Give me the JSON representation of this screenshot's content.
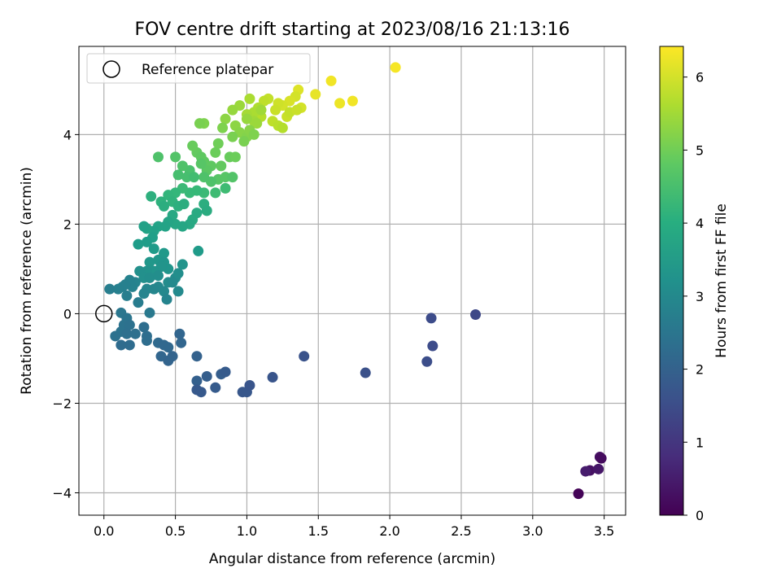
{
  "chart_data": {
    "type": "scatter",
    "title": "FOV centre drift starting at 2023/08/16 21:13:16",
    "xlabel": "Angular distance from reference (arcmin)",
    "ylabel": "Rotation from reference (arcmin)",
    "xlim": [
      -0.175,
      3.65
    ],
    "ylim": [
      -4.5,
      5.97
    ],
    "x_ticks": [
      "0.0",
      "0.5",
      "1.0",
      "1.5",
      "2.0",
      "2.5",
      "3.0",
      "3.5"
    ],
    "y_ticks": [
      "−4",
      "−2",
      "0",
      "2",
      "4"
    ],
    "x_tick_values": [
      0,
      0.5,
      1.0,
      1.5,
      2.0,
      2.5,
      3.0,
      3.5
    ],
    "y_tick_values": [
      -4,
      -2,
      0,
      2,
      4
    ],
    "grid": true,
    "legend": {
      "placement": "top-left",
      "label": "Reference platepar"
    },
    "reference_point": [
      0.0,
      0.0
    ],
    "colormap": "viridis",
    "colorbar": {
      "label": "Hours from first FF file",
      "range": [
        0,
        6.42
      ],
      "ticks": [
        "0",
        "1",
        "2",
        "3",
        "4",
        "5",
        "6"
      ],
      "tick_values": [
        0,
        1,
        2,
        3,
        4,
        5,
        6
      ]
    },
    "points": [
      [
        3.32,
        -4.02,
        0.05
      ],
      [
        3.4,
        -3.5,
        0.3
      ],
      [
        3.37,
        -3.52,
        0.5
      ],
      [
        3.46,
        -3.47,
        0.4
      ],
      [
        3.47,
        -3.2,
        0.3
      ],
      [
        3.48,
        -3.23,
        0.2
      ],
      [
        2.04,
        5.5,
        6.35
      ],
      [
        1.59,
        5.2,
        6.3
      ],
      [
        1.48,
        4.9,
        6.2
      ],
      [
        1.65,
        4.7,
        6.25
      ],
      [
        1.74,
        4.75,
        6.3
      ],
      [
        1.36,
        5.0,
        6.1
      ],
      [
        1.34,
        4.85,
        6.0
      ],
      [
        1.38,
        4.6,
        6.0
      ],
      [
        1.3,
        4.75,
        6.05
      ],
      [
        1.25,
        4.65,
        6.0
      ],
      [
        1.22,
        4.7,
        5.95
      ],
      [
        1.2,
        4.55,
        5.9
      ],
      [
        1.28,
        4.4,
        5.9
      ],
      [
        1.3,
        4.5,
        5.85
      ],
      [
        1.35,
        4.55,
        5.9
      ],
      [
        1.15,
        4.8,
        5.85
      ],
      [
        1.12,
        4.75,
        5.8
      ],
      [
        1.18,
        4.3,
        5.8
      ],
      [
        1.22,
        4.2,
        5.75
      ],
      [
        1.25,
        4.15,
        5.7
      ],
      [
        1.1,
        4.4,
        5.7
      ],
      [
        1.08,
        4.6,
        5.65
      ],
      [
        1.05,
        4.5,
        5.6
      ],
      [
        1.02,
        4.8,
        5.6
      ],
      [
        1.0,
        4.45,
        5.55
      ],
      [
        1.05,
        4.3,
        5.5
      ],
      [
        1.07,
        4.25,
        5.45
      ],
      [
        1.1,
        4.55,
        5.5
      ],
      [
        1.0,
        4.35,
        5.4
      ],
      [
        0.95,
        4.65,
        5.45
      ],
      [
        0.9,
        4.55,
        5.4
      ],
      [
        0.85,
        4.35,
        5.3
      ],
      [
        0.92,
        4.2,
        5.3
      ],
      [
        0.95,
        4.05,
        5.25
      ],
      [
        1.0,
        3.95,
        5.2
      ],
      [
        1.02,
        4.1,
        5.25
      ],
      [
        1.05,
        4.0,
        5.15
      ],
      [
        0.98,
        3.85,
        5.1
      ],
      [
        0.9,
        3.95,
        5.1
      ],
      [
        0.83,
        4.15,
        5.15
      ],
      [
        0.7,
        4.25,
        5.15
      ],
      [
        0.67,
        4.25,
        5.1
      ],
      [
        0.8,
        3.8,
        5.0
      ],
      [
        0.78,
        3.6,
        4.95
      ],
      [
        0.88,
        3.5,
        4.9
      ],
      [
        0.92,
        3.5,
        4.95
      ],
      [
        0.82,
        3.3,
        4.85
      ],
      [
        0.75,
        3.3,
        4.8
      ],
      [
        0.7,
        3.4,
        4.8
      ],
      [
        0.65,
        3.6,
        4.85
      ],
      [
        0.62,
        3.75,
        4.9
      ],
      [
        0.68,
        3.5,
        4.8
      ],
      [
        0.72,
        3.2,
        4.75
      ],
      [
        0.8,
        3.0,
        4.7
      ],
      [
        0.85,
        3.05,
        4.7
      ],
      [
        0.9,
        3.05,
        4.65
      ],
      [
        0.7,
        3.05,
        4.6
      ],
      [
        0.75,
        2.95,
        4.6
      ],
      [
        0.68,
        3.35,
        4.7
      ],
      [
        0.6,
        3.2,
        4.55
      ],
      [
        0.55,
        3.3,
        4.6
      ],
      [
        0.5,
        3.5,
        4.65
      ],
      [
        0.52,
        3.1,
        4.5
      ],
      [
        0.58,
        3.05,
        4.5
      ],
      [
        0.63,
        3.05,
        4.45
      ],
      [
        0.78,
        2.7,
        4.4
      ],
      [
        0.85,
        2.8,
        4.4
      ],
      [
        0.7,
        2.7,
        4.35
      ],
      [
        0.65,
        2.75,
        4.3
      ],
      [
        0.6,
        2.7,
        4.3
      ],
      [
        0.55,
        2.8,
        4.35
      ],
      [
        0.5,
        2.7,
        4.25
      ],
      [
        0.45,
        2.65,
        4.2
      ],
      [
        0.48,
        2.5,
        4.15
      ],
      [
        0.4,
        2.5,
        4.1
      ],
      [
        0.38,
        3.5,
        4.6
      ],
      [
        0.33,
        2.62,
        4.05
      ],
      [
        0.42,
        2.4,
        4.0
      ],
      [
        0.52,
        2.4,
        4.05
      ],
      [
        0.56,
        2.45,
        4.0
      ],
      [
        0.7,
        2.45,
        4.0
      ],
      [
        0.72,
        2.3,
        3.95
      ],
      [
        0.65,
        2.25,
        3.9
      ],
      [
        0.62,
        2.1,
        3.9
      ],
      [
        0.6,
        2.0,
        3.85
      ],
      [
        0.55,
        1.95,
        3.8
      ],
      [
        0.5,
        2.0,
        3.8
      ],
      [
        0.48,
        2.2,
        3.85
      ],
      [
        0.45,
        2.05,
        3.75
      ],
      [
        0.43,
        1.95,
        3.7
      ],
      [
        0.38,
        1.95,
        3.7
      ],
      [
        0.35,
        1.85,
        3.65
      ],
      [
        0.3,
        1.9,
        3.7
      ],
      [
        0.28,
        1.95,
        3.65
      ],
      [
        0.34,
        1.7,
        3.6
      ],
      [
        0.3,
        1.6,
        3.55
      ],
      [
        0.24,
        1.55,
        3.55
      ],
      [
        0.35,
        1.45,
        3.5
      ],
      [
        0.42,
        1.35,
        3.45
      ],
      [
        0.38,
        1.2,
        3.4
      ],
      [
        0.32,
        1.15,
        3.4
      ],
      [
        0.42,
        1.15,
        3.35
      ],
      [
        0.45,
        1.0,
        3.35
      ],
      [
        0.4,
        1.05,
        3.3
      ],
      [
        0.35,
        0.95,
        3.3
      ],
      [
        0.3,
        0.95,
        3.25
      ],
      [
        0.25,
        0.95,
        3.2
      ],
      [
        0.28,
        0.8,
        3.2
      ],
      [
        0.32,
        0.8,
        3.15
      ],
      [
        0.38,
        0.85,
        3.15
      ],
      [
        0.45,
        0.7,
        3.1
      ],
      [
        0.5,
        0.8,
        3.1
      ],
      [
        0.52,
        0.9,
        3.15
      ],
      [
        0.55,
        1.1,
        3.3
      ],
      [
        0.52,
        0.5,
        3.05
      ],
      [
        0.48,
        0.7,
        3.05
      ],
      [
        0.42,
        0.5,
        3.0
      ],
      [
        0.38,
        0.6,
        3.0
      ],
      [
        0.35,
        0.55,
        2.95
      ],
      [
        0.3,
        0.55,
        2.95
      ],
      [
        0.28,
        0.45,
        2.9
      ],
      [
        0.22,
        0.7,
        2.9
      ],
      [
        0.2,
        0.6,
        2.85
      ],
      [
        0.18,
        0.75,
        2.85
      ],
      [
        0.15,
        0.65,
        2.8
      ],
      [
        0.13,
        0.6,
        2.8
      ],
      [
        0.1,
        0.55,
        2.8
      ],
      [
        0.04,
        0.55,
        2.75
      ],
      [
        0.16,
        0.4,
        2.75
      ],
      [
        0.24,
        0.25,
        2.7
      ],
      [
        0.32,
        0.02,
        2.6
      ],
      [
        0.44,
        0.32,
        2.9
      ],
      [
        0.66,
        1.4,
        3.5
      ],
      [
        0.12,
        0.02,
        2.55
      ],
      [
        0.16,
        -0.1,
        2.5
      ],
      [
        0.14,
        -0.25,
        2.45
      ],
      [
        0.18,
        -0.25,
        2.4
      ],
      [
        0.12,
        -0.4,
        2.45
      ],
      [
        0.08,
        -0.5,
        2.4
      ],
      [
        0.16,
        -0.45,
        2.35
      ],
      [
        0.22,
        -0.45,
        2.35
      ],
      [
        0.28,
        -0.3,
        2.3
      ],
      [
        0.3,
        -0.5,
        2.3
      ],
      [
        0.3,
        -0.6,
        2.3
      ],
      [
        0.18,
        -0.7,
        2.25
      ],
      [
        0.12,
        -0.7,
        2.25
      ],
      [
        0.38,
        -0.65,
        2.2
      ],
      [
        0.42,
        -0.7,
        2.15
      ],
      [
        0.45,
        -0.75,
        2.15
      ],
      [
        0.4,
        -0.95,
        2.1
      ],
      [
        0.45,
        -1.05,
        2.05
      ],
      [
        0.48,
        -0.95,
        2.05
      ],
      [
        0.53,
        -0.45,
        2.1
      ],
      [
        0.54,
        -0.65,
        2.1
      ],
      [
        0.65,
        -0.95,
        2.0
      ],
      [
        0.65,
        -1.5,
        1.95
      ],
      [
        0.72,
        -1.4,
        1.9
      ],
      [
        0.82,
        -1.35,
        1.9
      ],
      [
        0.85,
        -1.3,
        1.85
      ],
      [
        0.78,
        -1.65,
        1.85
      ],
      [
        0.65,
        -1.7,
        1.8
      ],
      [
        0.68,
        -1.75,
        1.8
      ],
      [
        0.97,
        -1.75,
        1.75
      ],
      [
        1.0,
        -1.75,
        1.75
      ],
      [
        1.02,
        -1.6,
        1.7
      ],
      [
        1.18,
        -1.42,
        1.7
      ],
      [
        1.4,
        -0.95,
        1.65
      ],
      [
        1.83,
        -1.32,
        1.6
      ],
      [
        2.26,
        -1.07,
        1.55
      ],
      [
        2.3,
        -0.72,
        1.5
      ],
      [
        2.29,
        -0.1,
        1.5
      ],
      [
        2.6,
        -0.02,
        1.4
      ]
    ]
  }
}
